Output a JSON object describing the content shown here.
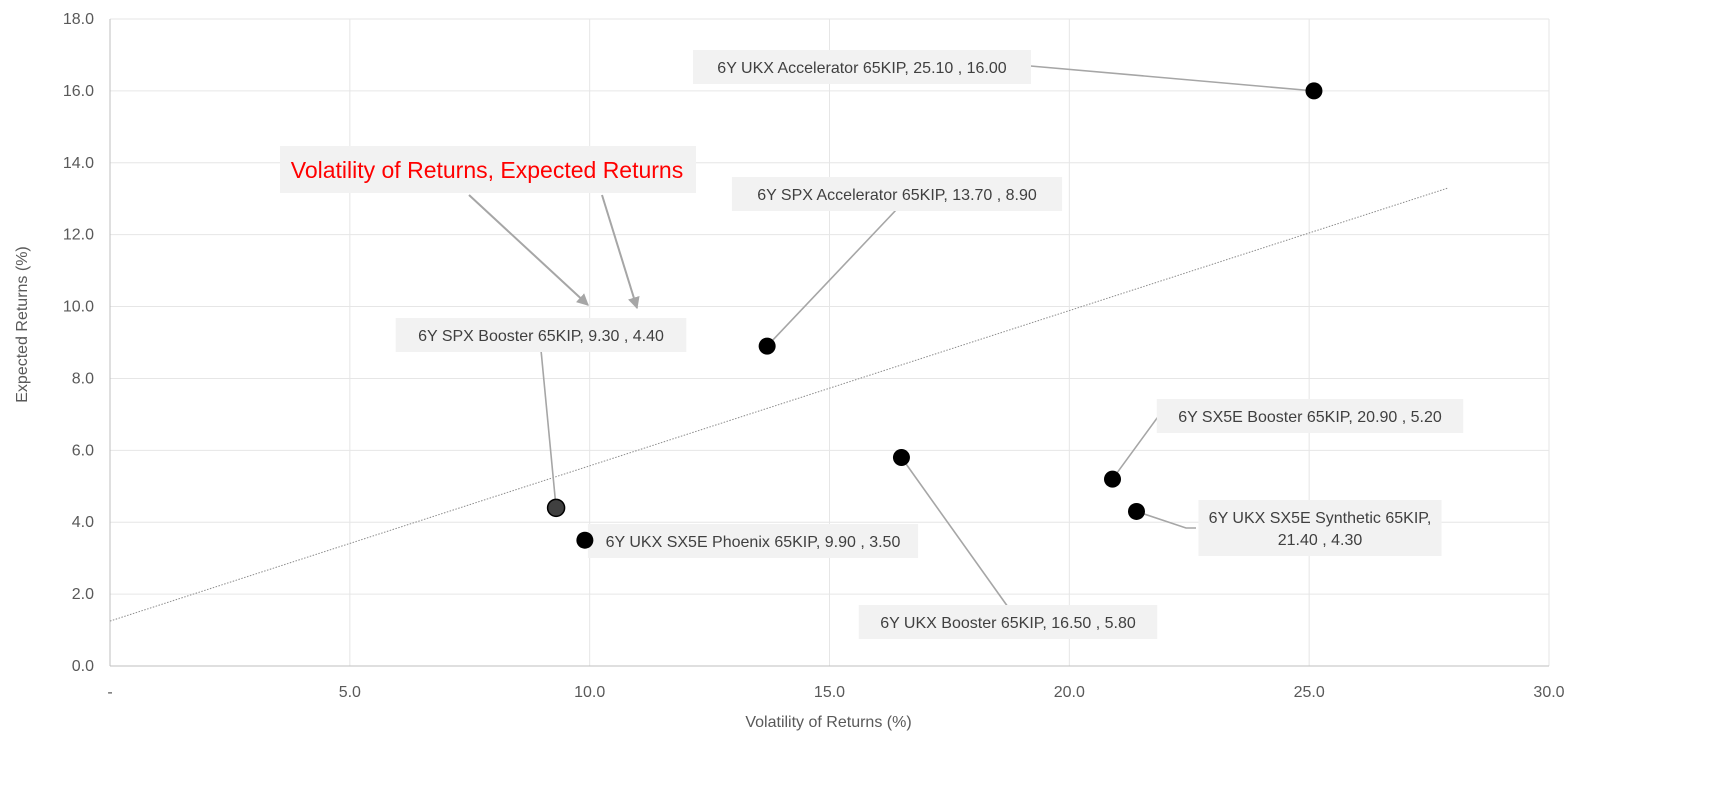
{
  "chart_data": {
    "type": "scatter",
    "xlabel": "Volatility of Returns (%)",
    "ylabel": "Expected Returns (%)",
    "xlim": [
      0,
      30
    ],
    "ylim": [
      0,
      18
    ],
    "x_ticks": [
      "-",
      "5.0",
      "10.0",
      "15.0",
      "20.0",
      "25.0",
      "30.0"
    ],
    "y_ticks": [
      "0.0",
      "2.0",
      "4.0",
      "6.0",
      "8.0",
      "10.0",
      "12.0",
      "14.0",
      "16.0",
      "18.0"
    ],
    "grid": true,
    "annotation": {
      "text": "Volatility of Returns, Expected Returns",
      "color": "#ff0000"
    },
    "trendline": {
      "type": "linear",
      "from": [
        0,
        1.25
      ],
      "to": [
        27.9,
        13.3
      ]
    },
    "points": [
      {
        "name": "6Y UKX Accelerator 65KIP",
        "x": 25.1,
        "y": 16.0,
        "label_lines": [
          "6Y UKX Accelerator 65KIP,  25.10 , 16.00"
        ]
      },
      {
        "name": "6Y SPX Accelerator 65KIP",
        "x": 13.7,
        "y": 8.9,
        "label_lines": [
          "6Y SPX Accelerator 65KIP,  13.70 , 8.90"
        ]
      },
      {
        "name": "6Y SPX Booster 65KIP",
        "x": 9.3,
        "y": 4.4,
        "label_lines": [
          "6Y SPX Booster 65KIP,  9.30 , 4.40"
        ]
      },
      {
        "name": "6Y UKX SX5E Phoenix 65KIP",
        "x": 9.9,
        "y": 3.5,
        "label_lines": [
          "6Y UKX SX5E Phoenix 65KIP,  9.90 , 3.50"
        ]
      },
      {
        "name": "6Y UKX Booster 65KIP",
        "x": 16.5,
        "y": 5.8,
        "label_lines": [
          "6Y UKX Booster 65KIP,  16.50 , 5.80"
        ]
      },
      {
        "name": "6Y SX5E Booster 65KIP",
        "x": 20.9,
        "y": 5.2,
        "label_lines": [
          "6Y SX5E Booster 65KIP,  20.90 , 5.20"
        ]
      },
      {
        "name": "6Y UKX SX5E Synthetic 65KIP",
        "x": 21.4,
        "y": 4.3,
        "label_lines": [
          "6Y UKX SX5E Synthetic 65KIP,",
          "21.40 , 4.30"
        ]
      }
    ],
    "colors": {
      "marker": "#000000",
      "marker_highlight": "#404040",
      "grid": "#e6e6e6",
      "axis": "#bfbfbf",
      "label_bg": "#f2f2f2",
      "leader": "#a6a6a6",
      "trendline": "#8c8c8c"
    }
  }
}
